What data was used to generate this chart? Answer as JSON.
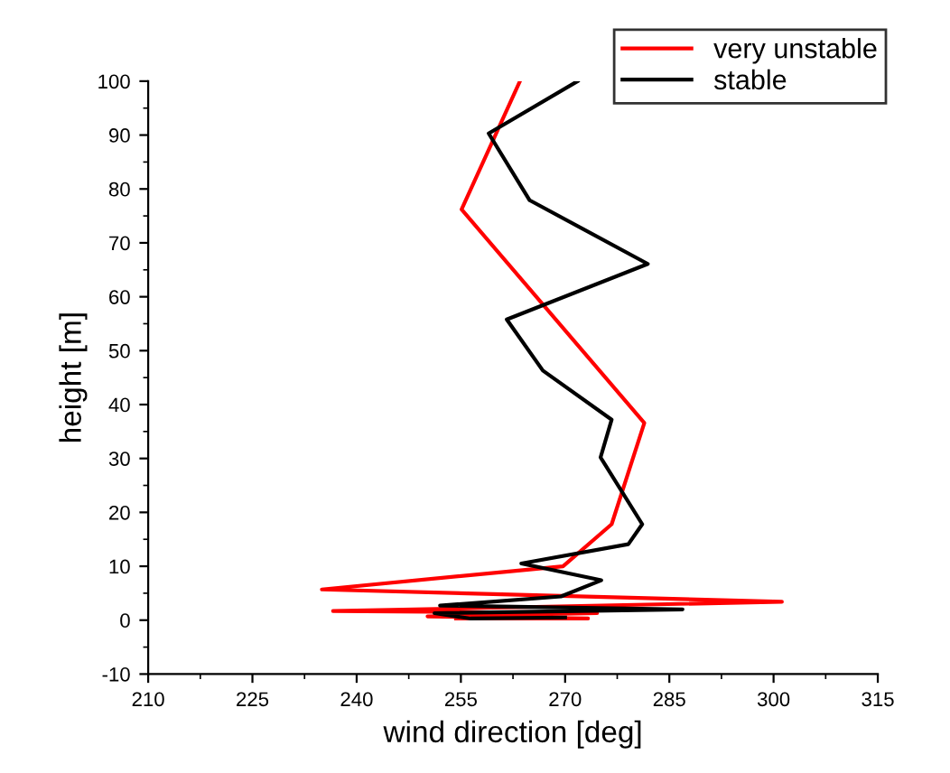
{
  "chart_data": {
    "type": "line",
    "xlabel": "wind direction [deg]",
    "ylabel": "height [m]",
    "xlim": [
      210,
      315
    ],
    "xticks": [
      210,
      225,
      240,
      255,
      270,
      285,
      300,
      315
    ],
    "ylim": [
      -10,
      100
    ],
    "yticks": [
      -10,
      0,
      10,
      20,
      30,
      40,
      50,
      60,
      70,
      80,
      90,
      100
    ],
    "grid": false,
    "legend": "top right",
    "marker": "none",
    "line_style": "solid",
    "series": [
      {
        "name": "very unstable",
        "color": "#ff0000",
        "x": [
          263.5,
          255.1,
          281.4,
          276.7,
          269.7,
          235.0,
          301.2,
          236.6,
          274.6,
          250.2,
          273.3,
          254.3
        ],
        "values": [
          100,
          76.2,
          36.6,
          17.8,
          10,
          5.7,
          3.4,
          1.7,
          1.3,
          0.7,
          0.3,
          0.3
        ]
      },
      {
        "name": "stable",
        "color": "#000000",
        "x": [
          271.8,
          259.0,
          264.9,
          281.9,
          261.6,
          266.8,
          276.7,
          275.1,
          281.1,
          279.1,
          263.7,
          275.2,
          269.4,
          252.0,
          286.9,
          251.2,
          256.4,
          270.0
        ],
        "values": [
          100,
          90.3,
          77.9,
          66.1,
          55.8,
          46.3,
          37.2,
          30.2,
          17.8,
          14.1,
          10.5,
          7.4,
          4.4,
          2.7,
          2.0,
          1.3,
          0.3,
          0.5
        ]
      }
    ]
  }
}
